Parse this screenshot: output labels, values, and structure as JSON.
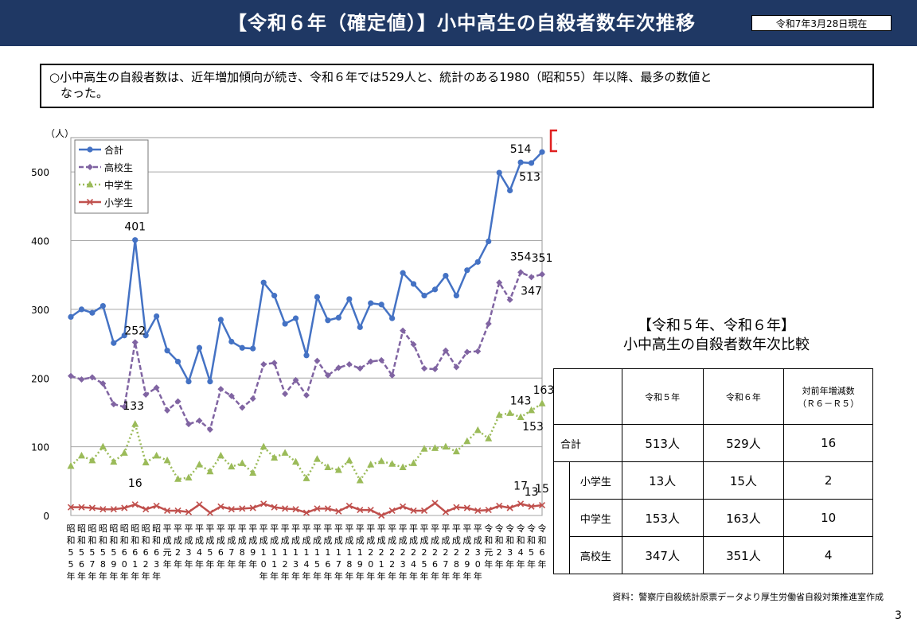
{
  "header": {
    "title": "【令和６年（確定値）】小中高生の自殺者数年次推移",
    "date": "令和7年3月28日現在"
  },
  "summary": {
    "line1": "○小中高生の自殺者数は、近年増加傾向が続き、令和６年では529人と、統計のある1980（昭和55）年以降、最多の数値と",
    "line2": "なった。"
  },
  "chart_data": {
    "type": "line",
    "y_unit": "（人）",
    "ylim": [
      0,
      550
    ],
    "yticks": [
      "0",
      "100",
      "200",
      "300",
      "400",
      "500"
    ],
    "x_labels": [
      "昭和55年",
      "昭和56年",
      "昭和57年",
      "昭和58年",
      "昭和59年",
      "昭和60年",
      "昭和61年",
      "昭和62年",
      "昭和63年",
      "平成元年",
      "平成2年",
      "平成3年",
      "平成4年",
      "平成5年",
      "平成6年",
      "平成7年",
      "平成8年",
      "平成9年",
      "平成10年",
      "平成11年",
      "平成12年",
      "平成13年",
      "平成14年",
      "平成15年",
      "平成16年",
      "平成17年",
      "平成18年",
      "平成19年",
      "平成20年",
      "平成21年",
      "平成22年",
      "平成23年",
      "平成24年",
      "平成25年",
      "平成26年",
      "平成27年",
      "平成28年",
      "平成29年",
      "平成30年",
      "令和元年",
      "令和2年",
      "令和3年",
      "令和4年",
      "令和5年",
      "令和6年"
    ],
    "series": [
      {
        "name": "合計",
        "color": "#4472c4",
        "marker": "circle",
        "dash": "",
        "values": [
          289,
          300,
          295,
          305,
          251,
          262,
          401,
          262,
          290,
          240,
          224,
          195,
          244,
          195,
          285,
          253,
          244,
          243,
          339,
          320,
          279,
          287,
          233,
          318,
          284,
          288,
          315,
          274,
          309,
          307,
          287,
          353,
          337,
          320,
          329,
          349,
          320,
          357,
          369,
          399,
          499,
          473,
          514,
          513,
          529
        ]
      },
      {
        "name": "高校生",
        "color": "#8064a2",
        "marker": "diamond",
        "dash": "6 3",
        "values": [
          203,
          198,
          201,
          192,
          162,
          158,
          252,
          176,
          186,
          153,
          166,
          133,
          138,
          125,
          184,
          174,
          157,
          170,
          220,
          222,
          177,
          197,
          175,
          225,
          204,
          215,
          220,
          214,
          224,
          226,
          204,
          269,
          249,
          214,
          213,
          240,
          216,
          238,
          239,
          279,
          339,
          314,
          354,
          347,
          351
        ]
      },
      {
        "name": "中学生",
        "color": "#9bbb59",
        "marker": "triangle",
        "dash": "2 3",
        "values": [
          72,
          87,
          80,
          100,
          78,
          91,
          133,
          77,
          87,
          80,
          53,
          55,
          74,
          64,
          87,
          71,
          76,
          62,
          100,
          84,
          91,
          78,
          54,
          82,
          70,
          66,
          80,
          51,
          74,
          79,
          75,
          70,
          76,
          97,
          98,
          100,
          93,
          108,
          124,
          112,
          146,
          149,
          143,
          153,
          163
        ]
      },
      {
        "name": "小学生",
        "color": "#c0504d",
        "marker": "x",
        "dash": "",
        "values": [
          12,
          12,
          11,
          9,
          9,
          11,
          16,
          9,
          14,
          7,
          7,
          5,
          16,
          4,
          13,
          9,
          10,
          11,
          17,
          12,
          10,
          9,
          4,
          10,
          10,
          6,
          14,
          8,
          8,
          0,
          7,
          13,
          7,
          7,
          18,
          5,
          12,
          11,
          7,
          8,
          14,
          11,
          17,
          13,
          15
        ]
      }
    ],
    "annotations": {
      "total_r6": "529",
      "total_r4": "514",
      "total_r5": "513",
      "total_s61": "401",
      "high_r4": "354",
      "high_r6": "351",
      "high_r5": "347",
      "high_s61": "252",
      "mid_s61": "133",
      "mid_r6": "163",
      "mid_r5": "153",
      "mid_r4": "143",
      "ele_s61": "16",
      "ele_r4": "17",
      "ele_r5": "13",
      "ele_r6": "15"
    },
    "legend_position": "top-left",
    "grid": true
  },
  "comparison": {
    "title_line1": "【令和５年、令和６年】",
    "title_line2": "小中高生の自殺者数年次比較",
    "headers": [
      "",
      "令和５年",
      "令和６年",
      "対前年増減数\n（Ｒ６－Ｒ５）"
    ],
    "rows": [
      {
        "label": "合計",
        "r5": "513人",
        "r6": "529人",
        "diff": "16"
      },
      {
        "label": "小学生",
        "r5": "13人",
        "r6": "15人",
        "diff": "2"
      },
      {
        "label": "中学生",
        "r5": "153人",
        "r6": "163人",
        "diff": "10"
      },
      {
        "label": "高校生",
        "r5": "347人",
        "r6": "351人",
        "diff": "4"
      }
    ]
  },
  "footer": {
    "source": "資料：警察庁自殺統計原票データより厚生労働省自殺対策推進室作成",
    "page": "3"
  }
}
